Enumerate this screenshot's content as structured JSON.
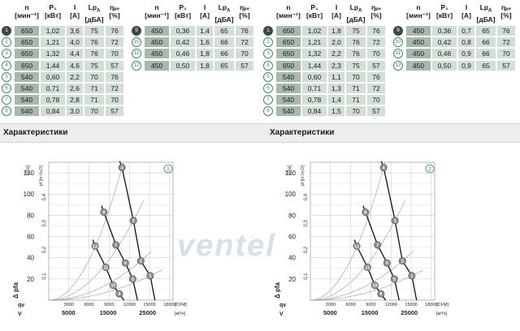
{
  "table_header": {
    "n": "n",
    "n_unit": "[мин⁻¹]",
    "p": "P₁",
    "p_unit": "[кВт]",
    "i": "I",
    "i_unit": "[A]",
    "lpa": "Lp",
    "lpa_sub": "A",
    "lpa_unit": "[дБА]",
    "eta": "ηₚₑ",
    "eta_unit": "[%]"
  },
  "table1": {
    "left": [
      {
        "id": "1",
        "n": "650",
        "p": "1,02",
        "i": "3,6",
        "lpa": "75",
        "eta": "76"
      },
      {
        "id": "2",
        "n": "650",
        "p": "1,21",
        "i": "4,0",
        "lpa": "76",
        "eta": "72"
      },
      {
        "id": "3",
        "n": "650",
        "p": "1,32",
        "i": "4,4",
        "lpa": "76",
        "eta": "70"
      },
      {
        "id": "4",
        "n": "650",
        "p": "1,44",
        "i": "4,6",
        "lpa": "75",
        "eta": "57"
      },
      {
        "id": "5",
        "n": "540",
        "p": "0,60",
        "i": "2,2",
        "lpa": "70",
        "eta": "76"
      },
      {
        "id": "6",
        "n": "540",
        "p": "0,71",
        "i": "2,6",
        "lpa": "71",
        "eta": "72"
      },
      {
        "id": "7",
        "n": "540",
        "p": "0,78",
        "i": "2,8",
        "lpa": "71",
        "eta": "70"
      },
      {
        "id": "8",
        "n": "540",
        "p": "0,84",
        "i": "3,0",
        "lpa": "70",
        "eta": "57"
      }
    ],
    "right": [
      {
        "id": "9",
        "n": "450",
        "p": "0,36",
        "i": "1,4",
        "lpa": "65",
        "eta": "76"
      },
      {
        "id": "10",
        "n": "450",
        "p": "0,42",
        "i": "1,6",
        "lpa": "66",
        "eta": "72"
      },
      {
        "id": "11",
        "n": "450",
        "p": "0,46",
        "i": "1,8",
        "lpa": "66",
        "eta": "70"
      },
      {
        "id": "12",
        "n": "450",
        "p": "0,50",
        "i": "1,8",
        "lpa": "65",
        "eta": "57"
      }
    ]
  },
  "table2": {
    "left": [
      {
        "id": "1",
        "n": "650",
        "p": "1,02",
        "i": "1,8",
        "lpa": "75",
        "eta": "76"
      },
      {
        "id": "2",
        "n": "650",
        "p": "1,21",
        "i": "2,0",
        "lpa": "76",
        "eta": "72"
      },
      {
        "id": "3",
        "n": "650",
        "p": "1,32",
        "i": "2,2",
        "lpa": "76",
        "eta": "70"
      },
      {
        "id": "4",
        "n": "650",
        "p": "1,44",
        "i": "2,3",
        "lpa": "75",
        "eta": "57"
      },
      {
        "id": "5",
        "n": "540",
        "p": "0,60",
        "i": "1,1",
        "lpa": "70",
        "eta": "76"
      },
      {
        "id": "6",
        "n": "540",
        "p": "0,71",
        "i": "1,3",
        "lpa": "71",
        "eta": "72"
      },
      {
        "id": "7",
        "n": "540",
        "p": "0,78",
        "i": "1,4",
        "lpa": "71",
        "eta": "70"
      },
      {
        "id": "8",
        "n": "540",
        "p": "0,84",
        "i": "1,5",
        "lpa": "70",
        "eta": "57"
      }
    ],
    "right": [
      {
        "id": "9",
        "n": "450",
        "p": "0,36",
        "i": "0,7",
        "lpa": "65",
        "eta": "76"
      },
      {
        "id": "10",
        "n": "450",
        "p": "0,42",
        "i": "0,8",
        "lpa": "66",
        "eta": "72"
      },
      {
        "id": "11",
        "n": "450",
        "p": "0,46",
        "i": "0,9",
        "lpa": "66",
        "eta": "70"
      },
      {
        "id": "12",
        "n": "450",
        "p": "0,50",
        "i": "0,9",
        "lpa": "65",
        "eta": "57"
      }
    ]
  },
  "section_title": "Характеристики",
  "watermark": "ventel",
  "colors": {
    "cell": "#d3ded6",
    "cell_dark": "#a7b8ad",
    "accent": "#3d8c5a",
    "badge_dark": "#3d4a44"
  },
  "chart_data": [
    {
      "type": "line",
      "badge": "1",
      "y_label": "Δ pfa",
      "y_unit": "[Pa]",
      "y2_label": "pf [in H₂O]",
      "y2_unit": "[in H₂O]",
      "y_ticks": [
        "20",
        "40",
        "60",
        "80",
        "100",
        "120"
      ],
      "y2_ticks": [
        "0,1",
        "0,2",
        "0,3",
        "0,4"
      ],
      "x_label": "qv",
      "x_unit": "[CFM]",
      "x_ticks": [
        "3000",
        "6000",
        "9000",
        "12000",
        "15000",
        "18000"
      ],
      "x2_label": "V",
      "x2_unit": "[м³/ч]",
      "x2_ticks": [
        "5000",
        "15000",
        "25000"
      ],
      "xlim": [
        0,
        18500
      ],
      "ylim": [
        0,
        130
      ],
      "operating_points": [
        {
          "id": "4",
          "x": 10900,
          "y": 125
        },
        {
          "id": "3",
          "x": 12600,
          "y": 75
        },
        {
          "id": "2",
          "x": 13700,
          "y": 37
        },
        {
          "id": "1",
          "x": 15100,
          "y": 23
        },
        {
          "id": "8",
          "x": 8200,
          "y": 83
        },
        {
          "id": "7",
          "x": 10000,
          "y": 52
        },
        {
          "id": "6",
          "x": 11400,
          "y": 35
        },
        {
          "id": "5",
          "x": 12500,
          "y": 20
        },
        {
          "id": "12",
          "x": 6900,
          "y": 51
        },
        {
          "id": "11",
          "x": 8500,
          "y": 31
        },
        {
          "id": "10",
          "x": 9600,
          "y": 14
        },
        {
          "id": "9",
          "x": 10500,
          "y": 6
        }
      ]
    },
    {
      "type": "line",
      "badge": "2",
      "y_label": "Δ pfa",
      "y_unit": "[Pa]",
      "y2_label": "pf [in H₂O]",
      "y2_unit": "[in H₂O]",
      "y_ticks": [
        "20",
        "40",
        "60",
        "80",
        "100",
        "120"
      ],
      "y2_ticks": [
        "0,1",
        "0,2",
        "0,3",
        "0,4"
      ],
      "x_label": "qv",
      "x_unit": "[CFM]",
      "x_ticks": [
        "3000",
        "6000",
        "9000",
        "12000",
        "15000",
        "18000"
      ],
      "x2_label": "V",
      "x2_unit": "[м³/ч]",
      "x2_ticks": [
        "5000",
        "15000",
        "25000"
      ],
      "xlim": [
        0,
        18500
      ],
      "ylim": [
        0,
        130
      ],
      "operating_points": [
        {
          "id": "4",
          "x": 10900,
          "y": 125
        },
        {
          "id": "3",
          "x": 12600,
          "y": 75
        },
        {
          "id": "2",
          "x": 13700,
          "y": 37
        },
        {
          "id": "1",
          "x": 15100,
          "y": 23
        },
        {
          "id": "8",
          "x": 8200,
          "y": 83
        },
        {
          "id": "7",
          "x": 10000,
          "y": 52
        },
        {
          "id": "6",
          "x": 11400,
          "y": 35
        },
        {
          "id": "5",
          "x": 12500,
          "y": 20
        },
        {
          "id": "12",
          "x": 6900,
          "y": 51
        },
        {
          "id": "11",
          "x": 8500,
          "y": 31
        },
        {
          "id": "10",
          "x": 9600,
          "y": 14
        },
        {
          "id": "9",
          "x": 10500,
          "y": 6
        }
      ]
    }
  ]
}
